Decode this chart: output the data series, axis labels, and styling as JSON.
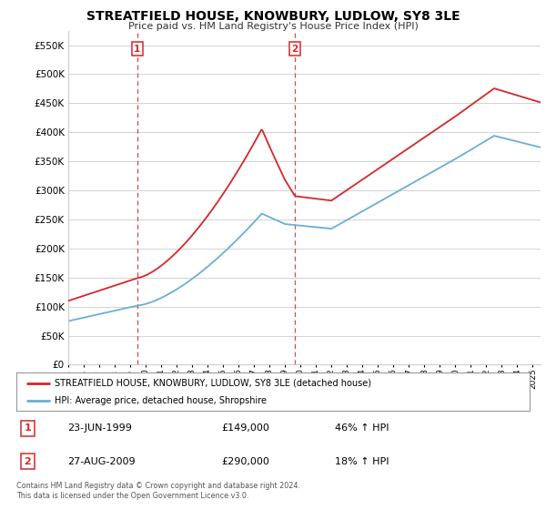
{
  "title": "STREATFIELD HOUSE, KNOWBURY, LUDLOW, SY8 3LE",
  "subtitle": "Price paid vs. HM Land Registry's House Price Index (HPI)",
  "ylim": [
    0,
    575000
  ],
  "yticks": [
    0,
    50000,
    100000,
    150000,
    200000,
    250000,
    300000,
    350000,
    400000,
    450000,
    500000,
    550000
  ],
  "sale1_t": 1999.458,
  "sale1_price": 149000,
  "sale2_t": 2009.646,
  "sale2_price": 290000,
  "legend_line1": "STREATFIELD HOUSE, KNOWBURY, LUDLOW, SY8 3LE (detached house)",
  "legend_line2": "HPI: Average price, detached house, Shropshire",
  "table_row1": [
    "1",
    "23-JUN-1999",
    "£149,000",
    "46% ↑ HPI"
  ],
  "table_row2": [
    "2",
    "27-AUG-2009",
    "£290,000",
    "18% ↑ HPI"
  ],
  "footer": "Contains HM Land Registry data © Crown copyright and database right 2024.\nThis data is licensed under the Open Government Licence v3.0.",
  "hpi_color": "#6baed6",
  "house_color": "#d62728",
  "vline_color": "#d62728",
  "background_color": "#ffffff",
  "grid_color": "#cccccc",
  "xlim_start": 1995,
  "xlim_end": 2025.5
}
